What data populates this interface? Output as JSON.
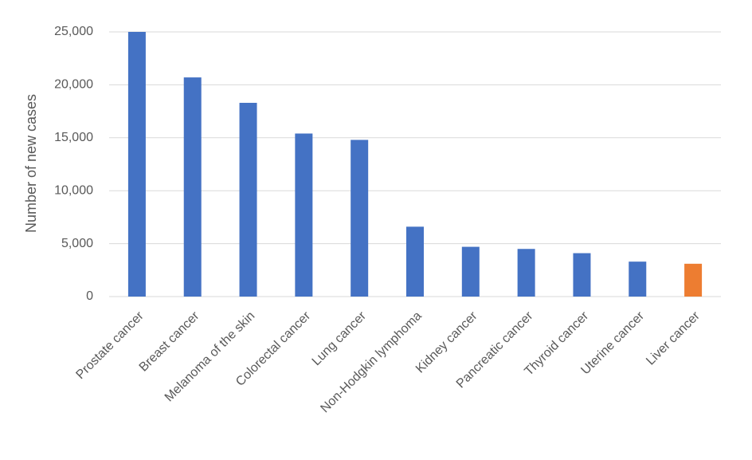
{
  "chart_data": {
    "type": "bar",
    "y_label": "Number of new cases",
    "categories": [
      "Prostate cancer",
      "Breast cancer",
      "Melanoma of the skin",
      "Colorectal cancer",
      "Lung cancer",
      "Non-Hodgkin lymphoma",
      "Kidney cancer",
      "Pancreatic cancer",
      "Thyroid cancer",
      "Uterine cancer",
      "Liver cancer"
    ],
    "values": [
      25000,
      20700,
      18300,
      15400,
      14800,
      6600,
      4700,
      4500,
      4100,
      3300,
      3100
    ],
    "colors": [
      "#4472c4",
      "#4472c4",
      "#4472c4",
      "#4472c4",
      "#4472c4",
      "#4472c4",
      "#4472c4",
      "#4472c4",
      "#4472c4",
      "#4472c4",
      "#ed7d31"
    ],
    "ylim": [
      0,
      25000
    ],
    "yticks": [
      0,
      {
        "value": 5000,
        "label": "5,000"
      },
      {
        "value": 10000,
        "label": "10,000"
      },
      {
        "value": 15000,
        "label": "15,000"
      },
      {
        "value": 20000,
        "label": "20,000"
      },
      {
        "value": 25000,
        "label": "25,000"
      }
    ],
    "grid": true
  }
}
